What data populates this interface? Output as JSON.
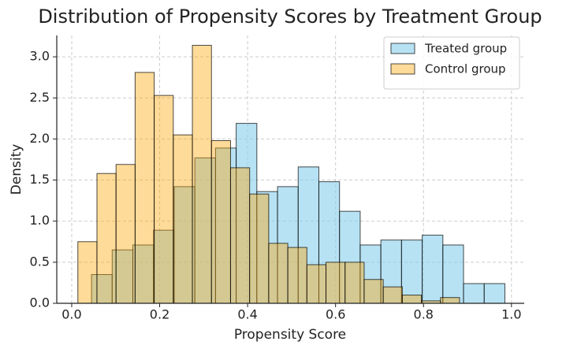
{
  "chart_data": {
    "type": "histogram",
    "title": "Distribution of Propensity Scores by Treatment Group",
    "x_label": "Propensity Score",
    "y_label": "Density",
    "xlim": [
      -0.034,
      1.029
    ],
    "ylim": [
      0,
      3.26
    ],
    "xticks": [
      {
        "value": 0,
        "label": "0.0"
      },
      {
        "value": 0.2,
        "label": "0.2"
      },
      {
        "value": 0.4,
        "label": "0.4"
      },
      {
        "value": 0.6,
        "label": "0.6"
      },
      {
        "value": 0.8,
        "label": "0.8"
      },
      {
        "value": 1,
        "label": "1.0"
      }
    ],
    "yticks": [
      {
        "value": 0,
        "label": "0.0"
      },
      {
        "value": 0.5,
        "label": "0.5"
      },
      {
        "value": 1,
        "label": "1.0"
      },
      {
        "value": 1.5,
        "label": "1.5"
      },
      {
        "value": 2,
        "label": "2.0"
      },
      {
        "value": 2.5,
        "label": "2.5"
      },
      {
        "value": 3,
        "label": "3.0"
      }
    ],
    "grid": true,
    "legend": "upper right",
    "series": [
      {
        "name": "Treated group",
        "color": "skyblue",
        "opacity": 0.6,
        "bins": [
          0.045,
          0.092,
          0.139,
          0.186,
          0.233,
          0.28,
          0.327,
          0.374,
          0.421,
          0.468,
          0.515,
          0.562,
          0.609,
          0.656,
          0.703,
          0.75,
          0.797,
          0.844,
          0.891,
          0.938,
          0.985
        ],
        "values": [
          0.35,
          0.65,
          0.71,
          0.89,
          1.42,
          1.77,
          1.89,
          2.19,
          1.36,
          1.42,
          1.66,
          1.48,
          1.12,
          0.71,
          0.77,
          0.77,
          0.83,
          0.71,
          0.24,
          0.24
        ]
      },
      {
        "name": "Control group",
        "color": "orange",
        "opacity": 0.4,
        "bins": [
          0.014,
          0.0574,
          0.1008,
          0.1442,
          0.1876,
          0.231,
          0.2744,
          0.3178,
          0.3612,
          0.4046,
          0.448,
          0.4914,
          0.5348,
          0.5782,
          0.6216,
          0.665,
          0.7084,
          0.7518,
          0.7952,
          0.8386,
          0.882
        ],
        "values": [
          0.75,
          1.58,
          1.69,
          2.81,
          2.53,
          2.05,
          3.14,
          1.98,
          1.65,
          1.33,
          0.73,
          0.68,
          0.47,
          0.5,
          0.5,
          0.29,
          0.2,
          0.1,
          0.03,
          0.07
        ]
      }
    ]
  }
}
